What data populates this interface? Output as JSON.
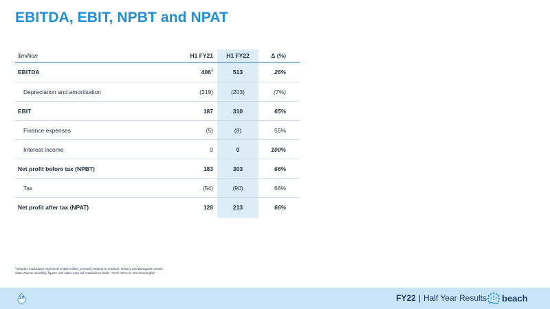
{
  "title": "EBITDA, EBIT, NPBT and NPAT",
  "table": {
    "headers": {
      "label": "$million",
      "h1fy21": "H1 FY21",
      "h1fy22": "H1 FY22",
      "delta": "Δ (%)"
    },
    "rows": [
      {
        "label": "EBITDA",
        "h1fy21": "406",
        "h1fy21_sup": "1",
        "h1fy22": "513",
        "delta": "26%"
      },
      {
        "label": "Depreciation and amortisation",
        "h1fy21": "(219)",
        "h1fy22": "(203)",
        "delta": "(7%)"
      },
      {
        "label": "EBIT",
        "h1fy21": "187",
        "h1fy22": "310",
        "delta": "65%"
      },
      {
        "label": "Finance expenses",
        "h1fy21": "(5)",
        "h1fy22": "(8)",
        "delta": "55%"
      },
      {
        "label": "Interest Income",
        "h1fy21": "0",
        "h1fy22": "0",
        "delta": "100%"
      },
      {
        "label": "Net profit before tax (NPBT)",
        "h1fy21": "183",
        "h1fy22": "303",
        "delta": "66%"
      },
      {
        "label": "Tax",
        "h1fy21": "(54)",
        "h1fy22": "(90)",
        "delta": "66%"
      },
      {
        "label": "Net profit after tax (NPAT)",
        "h1fy21": "128",
        "h1fy22": "213",
        "delta": "66%"
      }
    ]
  },
  "footnotes": {
    "line1": "¹Includes exploration expensed of $39 million, primarily relating to Ironbark, Wherry and Bonaparte assets.",
    "line2": "Note: Due to rounding, figures and ratios may not reconcile to totals. \"nmf\" refers to \"not meaningful\""
  },
  "footer": {
    "page_number": "29",
    "fy": "FY22",
    "separator": "|",
    "subtitle": "Half Year Results",
    "logo_text": "beach"
  },
  "colors": {
    "accent": "#1f8fd6",
    "footer_bg": "#c9e4f6",
    "highlight_col": "#dcedf8",
    "rule": "#1f6fb5"
  }
}
